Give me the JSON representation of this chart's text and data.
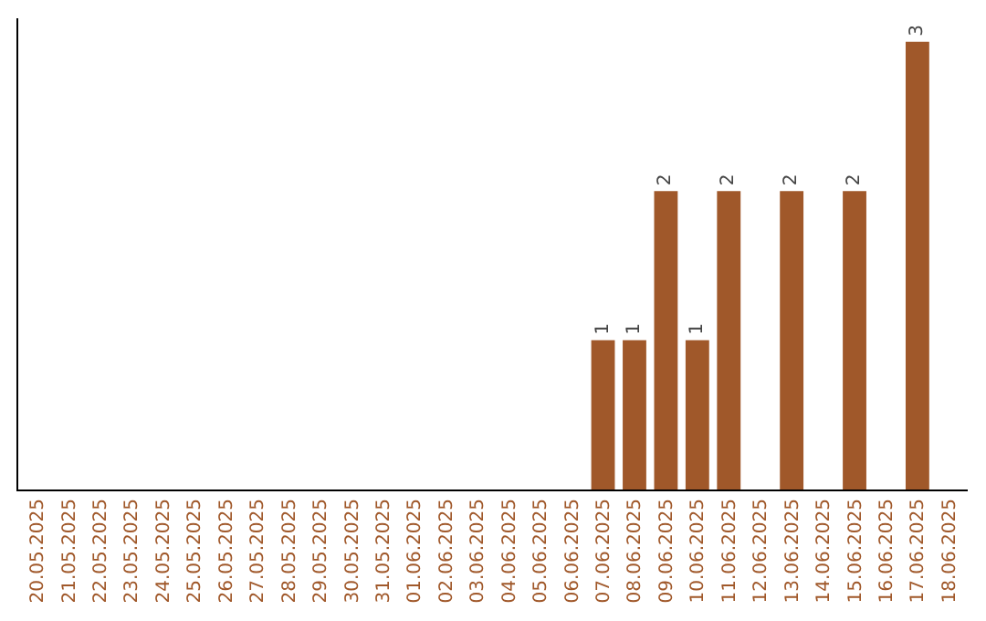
{
  "chart_data": {
    "type": "bar",
    "categories": [
      "20.05.2025",
      "21.05.2025",
      "22.05.2025",
      "23.05.2025",
      "24.05.2025",
      "25.05.2025",
      "26.05.2025",
      "27.05.2025",
      "28.05.2025",
      "29.05.2025",
      "30.05.2025",
      "31.05.2025",
      "01.06.2025",
      "02.06.2025",
      "03.06.2025",
      "04.06.2025",
      "05.06.2025",
      "06.06.2025",
      "07.06.2025",
      "08.06.2025",
      "09.06.2025",
      "10.06.2025",
      "11.06.2025",
      "12.06.2025",
      "13.06.2025",
      "14.06.2025",
      "15.06.2025",
      "16.06.2025",
      "17.06.2025",
      "18.06.2025"
    ],
    "values": [
      null,
      null,
      null,
      null,
      null,
      null,
      null,
      null,
      null,
      null,
      null,
      null,
      null,
      null,
      null,
      null,
      null,
      null,
      1,
      1,
      2,
      1,
      2,
      null,
      2,
      null,
      2,
      null,
      3,
      null
    ],
    "value_labels": [
      null,
      null,
      null,
      null,
      null,
      null,
      null,
      null,
      null,
      null,
      null,
      null,
      null,
      null,
      null,
      null,
      null,
      null,
      "1",
      "1",
      "2",
      "1",
      "2",
      null,
      "2",
      null,
      "2",
      null,
      "3",
      null
    ],
    "color": "#a0582a",
    "tick_labels": "x",
    "grid": false,
    "legend": false
  }
}
